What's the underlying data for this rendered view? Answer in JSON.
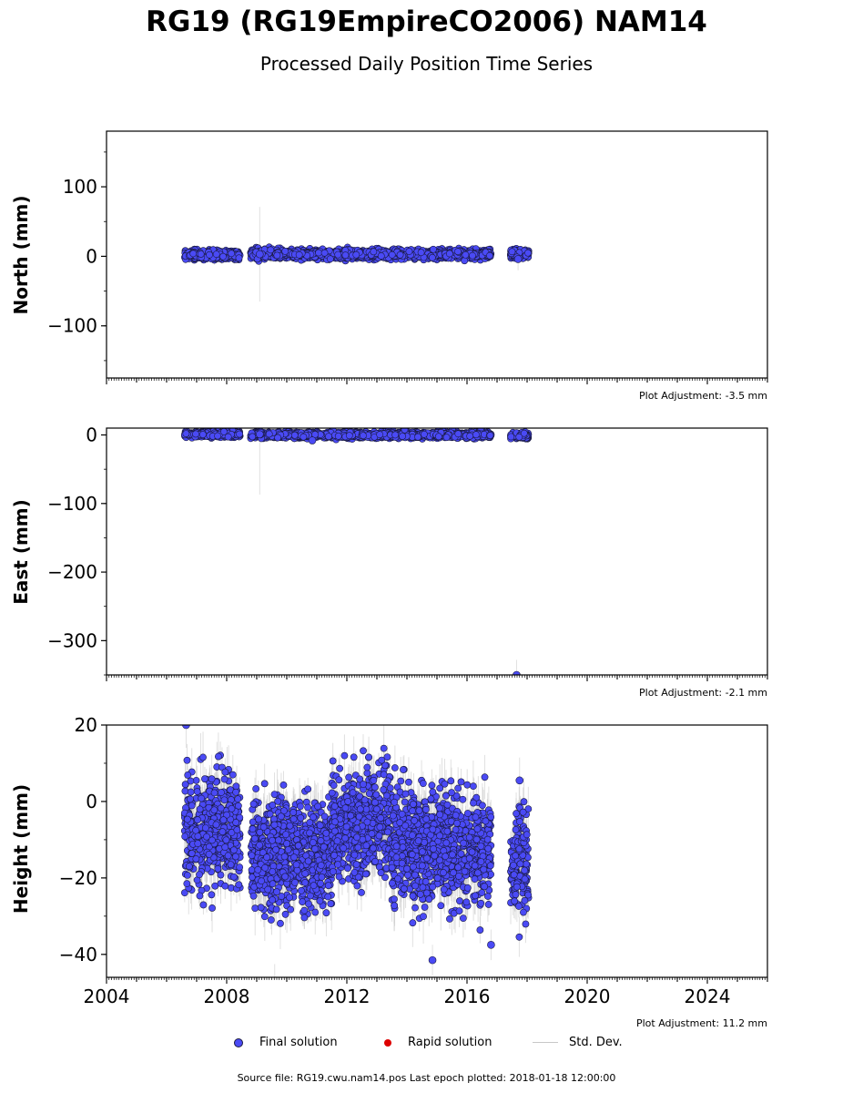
{
  "header": {
    "title": "RG19 (RG19EmpireCO2006) NAM14",
    "subtitle": "Processed Daily Position Time Series"
  },
  "legend": {
    "final_label": "Final solution",
    "rapid_label": "Rapid solution",
    "std_label": "Std. Dev."
  },
  "footer": {
    "text": "Source file: RG19.cwu.nam14.pos  Last epoch plotted: 2018-01-18 12:00:00"
  },
  "colors": {
    "final": "#4a4af5",
    "rapid": "#dd0000",
    "std": "#c8c8c8",
    "edge": "#1a1a40"
  },
  "chart_data": [
    {
      "type": "scatter",
      "name": "north",
      "ylabel": "North (mm)",
      "xlabel": "",
      "ylim": [
        -175,
        180
      ],
      "xlim": [
        2004,
        2026
      ],
      "yticks": [
        100,
        0,
        -100
      ],
      "ytick_labels": [
        "100",
        "0",
        "−100"
      ],
      "adjustment": "Plot Adjustment: -3.5 mm",
      "segments": [
        {
          "start": 2006.6,
          "end": 2008.45,
          "mean": 2,
          "spread": 3
        },
        {
          "start": 2008.8,
          "end": 2016.8,
          "mean": 3,
          "spread": 3
        },
        {
          "start": 2017.45,
          "end": 2018.05,
          "mean": 4,
          "spread": 3
        }
      ],
      "outliers": [
        {
          "x": 2009.1,
          "y": 3,
          "err": 68
        },
        {
          "x": 2017.7,
          "y": -4,
          "err": 16
        }
      ],
      "std_base": 4
    },
    {
      "type": "scatter",
      "name": "east",
      "ylabel": "East (mm)",
      "xlabel": "",
      "ylim": [
        -350,
        10
      ],
      "xlim": [
        2004,
        2026
      ],
      "yticks": [
        0,
        -100,
        -200,
        -300
      ],
      "ytick_labels": [
        "0",
        "−100",
        "−200",
        "−300"
      ],
      "adjustment": "Plot Adjustment: -2.1 mm",
      "segments": [
        {
          "start": 2006.6,
          "end": 2008.45,
          "mean": 1,
          "spread": 2
        },
        {
          "start": 2008.8,
          "end": 2016.8,
          "mean": 0,
          "spread": 2
        },
        {
          "start": 2017.45,
          "end": 2018.05,
          "mean": -1,
          "spread": 2
        }
      ],
      "outliers": [
        {
          "x": 2009.1,
          "y": 1,
          "err": 88
        },
        {
          "x": 2017.65,
          "y": -350,
          "err": 22
        },
        {
          "x": 2010.85,
          "y": -8,
          "err": 4
        }
      ],
      "std_base": 3
    },
    {
      "type": "scatter",
      "name": "height",
      "ylabel": "Height (mm)",
      "xlabel": "",
      "ylim": [
        -46,
        20
      ],
      "xlim": [
        2004,
        2026
      ],
      "xticks": [
        2004,
        2008,
        2012,
        2016,
        2020,
        2024
      ],
      "xtick_labels": [
        "2004",
        "2008",
        "2012",
        "2016",
        "2020",
        "2024"
      ],
      "yticks": [
        20,
        0,
        -20,
        -40
      ],
      "ytick_labels": [
        "20",
        "0",
        "−20",
        "−40"
      ],
      "adjustment": "Plot Adjustment: 11.2 mm",
      "segments": [
        {
          "start": 2006.6,
          "end": 2008.45,
          "mean": -8,
          "spread": 7
        },
        {
          "start": 2008.8,
          "end": 2011.5,
          "mean": -14,
          "spread": 7
        },
        {
          "start": 2011.5,
          "end": 2013.5,
          "mean": -6,
          "spread": 7
        },
        {
          "start": 2013.5,
          "end": 2016.8,
          "mean": -12,
          "spread": 7
        },
        {
          "start": 2017.45,
          "end": 2018.05,
          "mean": -16,
          "spread": 7
        }
      ],
      "outliers": [
        {
          "x": 2006.65,
          "y": 20,
          "err": 6
        },
        {
          "x": 2014.85,
          "y": -41.5,
          "err": 4
        },
        {
          "x": 2016.8,
          "y": -37.5,
          "err": 4
        },
        {
          "x": 2017.75,
          "y": 5.5,
          "err": 6
        }
      ],
      "std_base": 4
    }
  ]
}
